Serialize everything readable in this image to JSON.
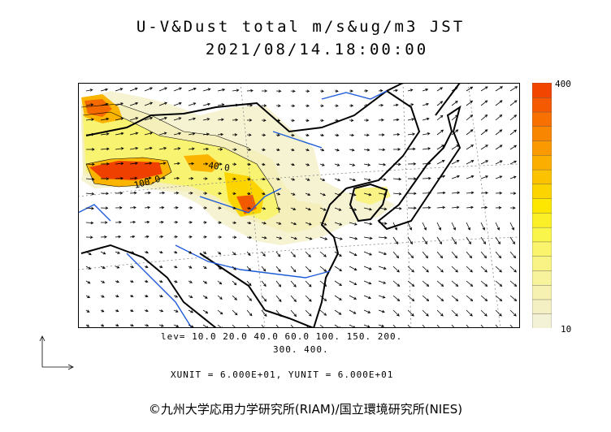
{
  "title": {
    "line1": "U-V&Dust total m/s&ug/m3 JST",
    "line2": "2021/08/14.18:00:00"
  },
  "legend": {
    "max_label": "400",
    "min_label": "10",
    "colors": [
      "#f4f2d6",
      "#f4f0c4",
      "#f6f1b0",
      "#f7f29c",
      "#f8f384",
      "#f9f46c",
      "#faf54a",
      "#fbf028",
      "#fde600",
      "#fcd400",
      "#fbc200",
      "#fbae00",
      "#fa9a00",
      "#f98600",
      "#f77000",
      "#f55a00",
      "#f24600"
    ]
  },
  "levels": {
    "line1": "lev= 10.0 20.0 40.0 60.0 100. 150. 200.",
    "line2": "300. 400."
  },
  "units": "XUNIT = 6.000E+01, YUNIT = 6.000E+01",
  "map": {
    "contour_labels": [
      "40.0",
      "100.0"
    ],
    "colors": {
      "coast": "#000000",
      "river": "#1e5cd9",
      "grid": "#888888",
      "arrow": "#000000"
    }
  },
  "copyright": "©九州大学応用力学研究所(RIAM)/国立環境研究所(NIES)"
}
